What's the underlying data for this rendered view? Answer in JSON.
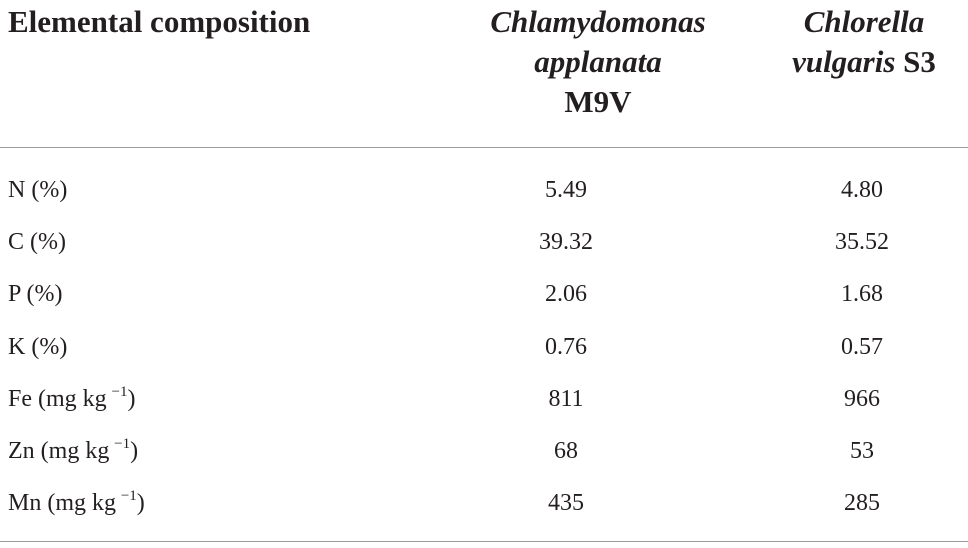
{
  "table": {
    "header": [
      {
        "text": "Elemental composition"
      },
      {
        "italic": "Chlamydomonas applanata",
        "plain": "M9V"
      },
      {
        "italic": "Chlorella vulgaris",
        "plain": "S3"
      }
    ],
    "rows": [
      {
        "label": "N (%)",
        "values": [
          "5.49",
          "4.80"
        ]
      },
      {
        "label": "C (%)",
        "values": [
          "39.32",
          "35.52"
        ]
      },
      {
        "label": "P (%)",
        "values": [
          "2.06",
          "1.68"
        ]
      },
      {
        "label": "K (%)",
        "values": [
          "0.76",
          "0.57"
        ]
      },
      {
        "label": "Fe (mg kg",
        "sup": "−1",
        "label_end": ")",
        "values": [
          "811",
          "966"
        ]
      },
      {
        "label": "Zn (mg kg",
        "sup": "−1",
        "label_end": ")",
        "values": [
          "68",
          "53"
        ]
      },
      {
        "label": "Mn (mg kg",
        "sup": "−1",
        "label_end": ")",
        "values": [
          "435",
          "285"
        ]
      }
    ]
  }
}
